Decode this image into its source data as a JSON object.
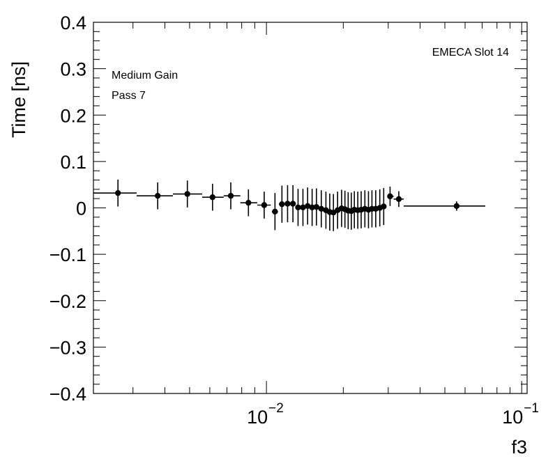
{
  "chart_data": {
    "type": "scatter",
    "xlabel": "f3",
    "ylabel": "Time [ns]",
    "x_scale": "log",
    "xlim": [
      0.0021,
      0.105
    ],
    "ylim": [
      -0.4,
      0.4
    ],
    "y_ticks": [
      {
        "value": 0.4,
        "label": "0.4"
      },
      {
        "value": 0.3,
        "label": "0.3"
      },
      {
        "value": 0.2,
        "label": "0.2"
      },
      {
        "value": 0.1,
        "label": "0.1"
      },
      {
        "value": 0.0,
        "label": "0"
      },
      {
        "value": -0.1,
        "label": "−0.1"
      },
      {
        "value": -0.2,
        "label": "−0.2"
      },
      {
        "value": -0.3,
        "label": "−0.3"
      },
      {
        "value": -0.4,
        "label": "−0.4"
      }
    ],
    "x_ticks": [
      {
        "value": 0.01,
        "base": "10",
        "exp": "−2"
      },
      {
        "value": 0.1,
        "base": "10",
        "exp": "−1"
      }
    ],
    "annotations": [
      "EMECA Slot 14",
      "Medium Gain",
      "Pass 7"
    ],
    "grid": false,
    "series": [
      {
        "color": "#000000",
        "points": [
          {
            "x": 0.00262,
            "y": 0.032,
            "xlo": 0.0021,
            "xhi": 0.0031,
            "err": 0.029
          },
          {
            "x": 0.00375,
            "y": 0.026,
            "xlo": 0.0031,
            "xhi": 0.0043,
            "err": 0.029
          },
          {
            "x": 0.0049,
            "y": 0.03,
            "xlo": 0.0043,
            "xhi": 0.0056,
            "err": 0.029
          },
          {
            "x": 0.00615,
            "y": 0.023,
            "xlo": 0.0056,
            "xhi": 0.0068,
            "err": 0.029
          },
          {
            "x": 0.00725,
            "y": 0.026,
            "xlo": 0.0068,
            "xhi": 0.0079,
            "err": 0.029
          },
          {
            "x": 0.0085,
            "y": 0.011,
            "xlo": 0.0079,
            "xhi": 0.0092,
            "err": 0.029
          },
          {
            "x": 0.0098,
            "y": 0.006,
            "xlo": 0.0092,
            "xhi": 0.0104,
            "err": 0.029
          },
          {
            "x": 0.0108,
            "y": -0.008,
            "xlo": 0.0105,
            "xhi": 0.0111,
            "err": 0.04
          },
          {
            "x": 0.0115,
            "y": 0.008,
            "xlo": 0.0112,
            "xhi": 0.0118,
            "err": 0.04
          },
          {
            "x": 0.0121,
            "y": 0.009,
            "xlo": 0.0118,
            "xhi": 0.0124,
            "err": 0.04
          },
          {
            "x": 0.0127,
            "y": 0.009,
            "xlo": 0.0124,
            "xhi": 0.013,
            "err": 0.04
          },
          {
            "x": 0.0133,
            "y": 0.001,
            "xlo": 0.013,
            "xhi": 0.0136,
            "err": 0.04
          },
          {
            "x": 0.0139,
            "y": 0.001,
            "xlo": 0.0136,
            "xhi": 0.0142,
            "err": 0.04
          },
          {
            "x": 0.0145,
            "y": 0.004,
            "xlo": 0.0142,
            "xhi": 0.0148,
            "err": 0.04
          },
          {
            "x": 0.0151,
            "y": 0.001,
            "xlo": 0.0148,
            "xhi": 0.0154,
            "err": 0.04
          },
          {
            "x": 0.0157,
            "y": 0.002,
            "xlo": 0.0154,
            "xhi": 0.016,
            "err": 0.04
          },
          {
            "x": 0.0164,
            "y": -0.002,
            "xlo": 0.016,
            "xhi": 0.0168,
            "err": 0.04
          },
          {
            "x": 0.0171,
            "y": -0.005,
            "xlo": 0.0168,
            "xhi": 0.0174,
            "err": 0.04
          },
          {
            "x": 0.0177,
            "y": -0.009,
            "xlo": 0.0174,
            "xhi": 0.018,
            "err": 0.04
          },
          {
            "x": 0.0183,
            "y": -0.01,
            "xlo": 0.018,
            "xhi": 0.0186,
            "err": 0.04
          },
          {
            "x": 0.019,
            "y": -0.005,
            "xlo": 0.0186,
            "xhi": 0.0194,
            "err": 0.04
          },
          {
            "x": 0.0197,
            "y": -0.001,
            "xlo": 0.0194,
            "xhi": 0.02,
            "err": 0.04
          },
          {
            "x": 0.0203,
            "y": -0.003,
            "xlo": 0.02,
            "xhi": 0.0206,
            "err": 0.04
          },
          {
            "x": 0.0209,
            "y": -0.006,
            "xlo": 0.0206,
            "xhi": 0.0212,
            "err": 0.04
          },
          {
            "x": 0.0215,
            "y": -0.007,
            "xlo": 0.0212,
            "xhi": 0.0218,
            "err": 0.04
          },
          {
            "x": 0.0221,
            "y": -0.004,
            "xlo": 0.0218,
            "xhi": 0.0224,
            "err": 0.04
          },
          {
            "x": 0.0228,
            "y": -0.005,
            "xlo": 0.0224,
            "xhi": 0.0232,
            "err": 0.04
          },
          {
            "x": 0.0235,
            "y": -0.004,
            "xlo": 0.0232,
            "xhi": 0.0239,
            "err": 0.04
          },
          {
            "x": 0.0243,
            "y": -0.002,
            "xlo": 0.0239,
            "xhi": 0.0247,
            "err": 0.04
          },
          {
            "x": 0.0251,
            "y": -0.004,
            "xlo": 0.0247,
            "xhi": 0.0255,
            "err": 0.04
          },
          {
            "x": 0.0259,
            "y": -0.002,
            "xlo": 0.0255,
            "xhi": 0.0263,
            "err": 0.04
          },
          {
            "x": 0.0268,
            "y": -0.002,
            "xlo": 0.0263,
            "xhi": 0.0273,
            "err": 0.04
          },
          {
            "x": 0.0278,
            "y": 0.0,
            "xlo": 0.0273,
            "xhi": 0.0283,
            "err": 0.04
          },
          {
            "x": 0.0288,
            "y": 0.003,
            "xlo": 0.0283,
            "xhi": 0.0295,
            "err": 0.04
          },
          {
            "x": 0.0305,
            "y": 0.025,
            "xlo": 0.0298,
            "xhi": 0.0315,
            "err": 0.021
          },
          {
            "x": 0.033,
            "y": 0.019,
            "xlo": 0.0315,
            "xhi": 0.0345,
            "err": 0.017
          },
          {
            "x": 0.0556,
            "y": 0.004,
            "xlo": 0.0345,
            "xhi": 0.072,
            "err": 0.01
          }
        ]
      }
    ]
  }
}
